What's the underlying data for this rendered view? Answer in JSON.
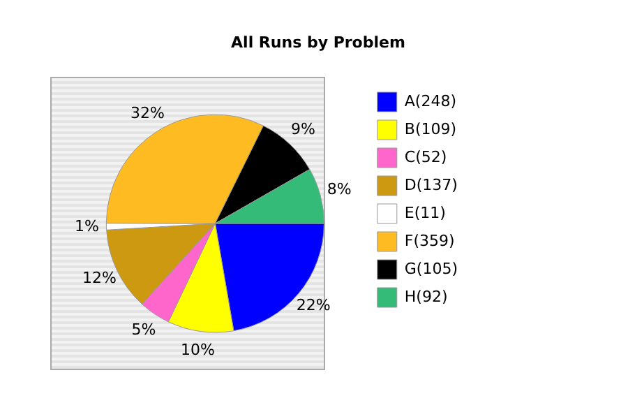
{
  "chart_data": {
    "type": "pie",
    "title": "All Runs by Problem",
    "categories": [
      "A(248)",
      "B(109)",
      "C(52)",
      "D(137)",
      "E(11)",
      "F(359)",
      "G(105)",
      "H(92)"
    ],
    "values": [
      22.28,
      9.79,
      4.67,
      12.31,
      0.99,
      32.26,
      9.43,
      8.27
    ],
    "colors": [
      "#0000ff",
      "#ffff00",
      "#ff66cc",
      "#cc9911",
      "#ffffff",
      "#ffbb22",
      "#000000",
      "#33bb77"
    ],
    "value_labels": [
      "22%",
      "10%",
      "5%",
      "12%",
      "1%",
      "32%",
      "9%",
      "8%"
    ],
    "legend": "top right"
  }
}
